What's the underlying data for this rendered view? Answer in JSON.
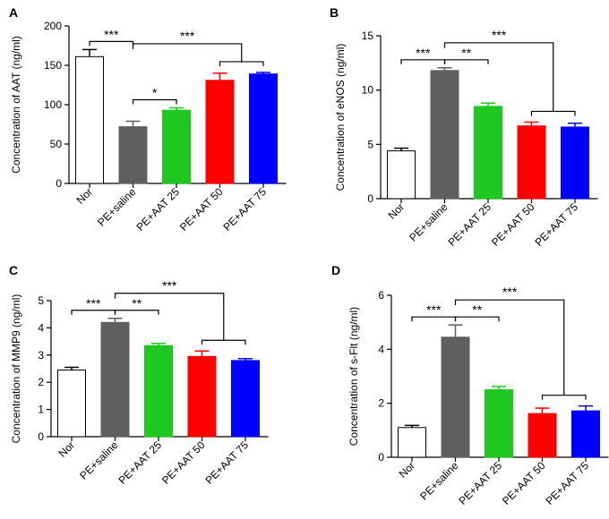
{
  "chart_data": [
    {
      "type": "bar",
      "panel": "A",
      "title": "",
      "xlabel": "",
      "ylabel": "Concentration of AAT (ng/ml)",
      "ylim": [
        0,
        200
      ],
      "yticks": [
        0,
        50,
        100,
        150,
        200
      ],
      "categories": [
        "Nor",
        "PE+saline",
        "PE+AAT 25",
        "PE+AAT 50",
        "PE+AAT 75"
      ],
      "values": [
        161,
        72,
        93,
        131,
        139
      ],
      "errors": [
        9,
        7,
        3,
        9,
        2
      ],
      "colors": [
        "#ffffff",
        "#5f5f5f",
        "#1ec81e",
        "#ff0000",
        "#0000ff"
      ],
      "annotations": [
        {
          "label": "***",
          "from": [
            0
          ],
          "to": [
            1
          ]
        },
        {
          "label": "*",
          "from": [
            1
          ],
          "to": [
            2
          ]
        },
        {
          "label": "***",
          "from": [
            1
          ],
          "to": [
            3,
            4
          ]
        }
      ]
    },
    {
      "type": "bar",
      "panel": "B",
      "title": "",
      "xlabel": "",
      "ylabel": "Concentration of eNOS (ng/ml)",
      "ylim": [
        0,
        15
      ],
      "yticks": [
        0,
        5,
        10,
        15
      ],
      "categories": [
        "Nor",
        "PE+saline",
        "PE+AAT 25",
        "PE+AAT 50",
        "PE+AAT 75"
      ],
      "values": [
        4.4,
        11.8,
        8.5,
        6.7,
        6.6
      ],
      "errors": [
        0.25,
        0.25,
        0.3,
        0.35,
        0.35
      ],
      "colors": [
        "#ffffff",
        "#5f5f5f",
        "#1ec81e",
        "#ff0000",
        "#0000ff"
      ],
      "annotations": [
        {
          "label": "***",
          "from": [
            0
          ],
          "to": [
            1
          ]
        },
        {
          "label": "**",
          "from": [
            1
          ],
          "to": [
            2
          ]
        },
        {
          "label": "***",
          "from": [
            1
          ],
          "to": [
            3,
            4
          ]
        }
      ]
    },
    {
      "type": "bar",
      "panel": "C",
      "title": "",
      "xlabel": "",
      "ylabel": "Concentration of MMP9 (ng/ml)",
      "ylim": [
        0,
        5
      ],
      "yticks": [
        0,
        1,
        2,
        3,
        4,
        5
      ],
      "categories": [
        "Nor",
        "PE+saline",
        "PE+AAT 25",
        "PE+AAT 50",
        "PE+AAT 75"
      ],
      "values": [
        2.45,
        4.2,
        3.35,
        2.95,
        2.8
      ],
      "errors": [
        0.1,
        0.15,
        0.08,
        0.2,
        0.07
      ],
      "colors": [
        "#ffffff",
        "#5f5f5f",
        "#1ec81e",
        "#ff0000",
        "#0000ff"
      ],
      "annotations": [
        {
          "label": "***",
          "from": [
            0
          ],
          "to": [
            1
          ]
        },
        {
          "label": "**",
          "from": [
            1
          ],
          "to": [
            2
          ]
        },
        {
          "label": "***",
          "from": [
            1
          ],
          "to": [
            3,
            4
          ]
        }
      ]
    },
    {
      "type": "bar",
      "panel": "D",
      "title": "",
      "xlabel": "",
      "ylabel": "Concentration of s-Flt (ng/ml)",
      "ylim": [
        0,
        6
      ],
      "yticks": [
        0,
        2,
        4,
        6
      ],
      "categories": [
        "Nor",
        "PE+saline",
        "PE+AAT 25",
        "PE+AAT 50",
        "PE+AAT 75"
      ],
      "values": [
        1.1,
        4.45,
        2.5,
        1.62,
        1.72
      ],
      "errors": [
        0.08,
        0.45,
        0.12,
        0.2,
        0.18
      ],
      "colors": [
        "#ffffff",
        "#5f5f5f",
        "#1ec81e",
        "#ff0000",
        "#0000ff"
      ],
      "annotations": [
        {
          "label": "***",
          "from": [
            0
          ],
          "to": [
            1
          ]
        },
        {
          "label": "**",
          "from": [
            1
          ],
          "to": [
            2
          ]
        },
        {
          "label": "***",
          "from": [
            1
          ],
          "to": [
            3,
            4
          ]
        }
      ]
    }
  ]
}
